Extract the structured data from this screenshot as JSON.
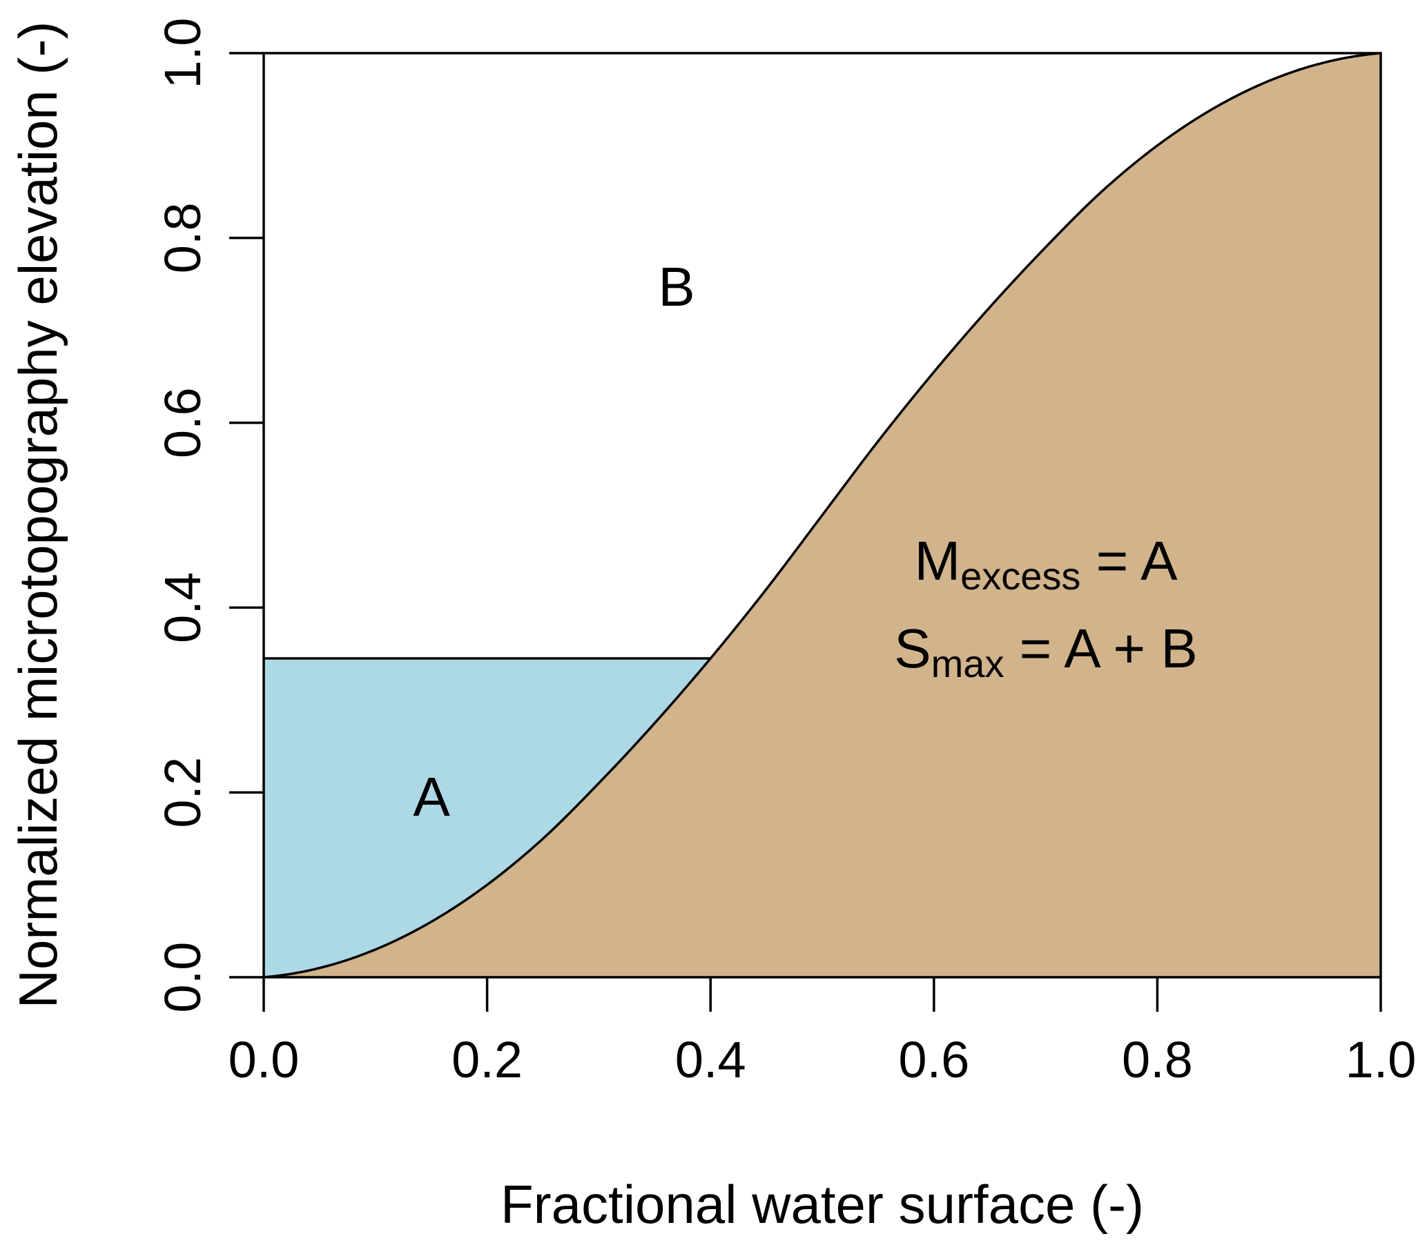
{
  "chart_data": {
    "type": "area",
    "xlabel": "Fractional water surface (-)",
    "ylabel": "Normalized microtopography elevation (-)",
    "xlim": [
      0,
      1
    ],
    "ylim": [
      0,
      1
    ],
    "x_ticks": [
      "0.0",
      "0.2",
      "0.4",
      "0.6",
      "0.8",
      "1.0"
    ],
    "y_ticks": [
      "0.0",
      "0.2",
      "0.4",
      "0.6",
      "0.8",
      "1.0"
    ],
    "grid": false,
    "water_level": 0.345,
    "curve": {
      "x": [
        0.0,
        0.05,
        0.1,
        0.15,
        0.2,
        0.25,
        0.3,
        0.35,
        0.4,
        0.45,
        0.5,
        0.55,
        0.6,
        0.65,
        0.7,
        0.75,
        0.8,
        0.85,
        0.9,
        0.95,
        1.0
      ],
      "y": [
        0.0,
        0.01,
        0.03,
        0.06,
        0.1,
        0.15,
        0.21,
        0.275,
        0.345,
        0.42,
        0.5,
        0.58,
        0.655,
        0.725,
        0.79,
        0.85,
        0.9,
        0.94,
        0.97,
        0.99,
        1.0
      ]
    },
    "colors": {
      "terrain": "#d2b48c",
      "water": "#add8e6",
      "line": "#000000"
    },
    "labels": {
      "region_a": "A",
      "region_b": "B",
      "m_main": "M",
      "m_sub": "excess",
      "m_rhs": " = A",
      "s_main": "S",
      "s_sub": "max",
      "s_rhs": " = A + B"
    }
  }
}
